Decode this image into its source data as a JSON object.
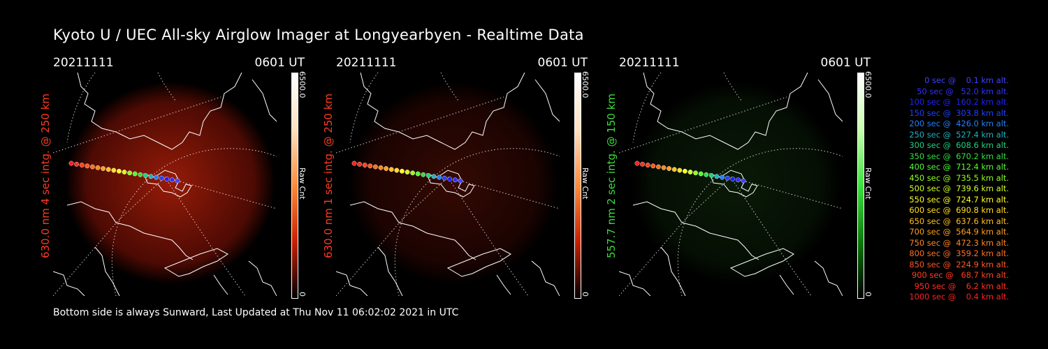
{
  "title": "Kyoto U / UEC All-sky Airglow Imager at Longyearbyen - Realtime Data",
  "panels": [
    {
      "date": "20211111",
      "time": "0601 UT",
      "label": "630.0 nm 4 sec intg. @ 250 km",
      "label_color": "#ff3b1f",
      "cbar_max": "6500.0",
      "cbar_unit": "Raw Cnt",
      "cbar_min": "0",
      "color_scheme": "red",
      "glow": 0.85
    },
    {
      "date": "20211111",
      "time": "0601 UT",
      "label": "630.0 nm 1 sec intg. @ 250 km",
      "label_color": "#ff3b1f",
      "cbar_max": "6500.0",
      "cbar_unit": "Raw Cnt",
      "cbar_min": "0",
      "color_scheme": "red",
      "glow": 0.3
    },
    {
      "date": "20211111",
      "time": "0601 UT",
      "label": "557.7 nm 2 sec intg. @ 150 km",
      "label_color": "#3ddc3d",
      "cbar_max": "6500.0",
      "cbar_unit": "Raw Cnt",
      "cbar_min": "0",
      "color_scheme": "green",
      "glow": 0.35
    }
  ],
  "legend": [
    {
      "text": "0 sec @    0.1 km alt.",
      "color": "#4040ff"
    },
    {
      "text": "50 sec @   52.0 km alt.",
      "color": "#3030ff"
    },
    {
      "text": "100 sec @  160.2 km alt.",
      "color": "#2020ff"
    },
    {
      "text": "150 sec @  303.8 km alt.",
      "color": "#2040ff"
    },
    {
      "text": "200 sec @  426.0 km alt.",
      "color": "#2080ff"
    },
    {
      "text": "250 sec @  527.4 km alt.",
      "color": "#20b0c0"
    },
    {
      "text": "300 sec @  608.6 km alt.",
      "color": "#20d080"
    },
    {
      "text": "350 sec @  670.2 km alt.",
      "color": "#30e040"
    },
    {
      "text": "400 sec @  712.4 km alt.",
      "color": "#50ff30"
    },
    {
      "text": "450 sec @  735.5 km alt.",
      "color": "#90ff20"
    },
    {
      "text": "500 sec @  739.6 km alt.",
      "color": "#d0ff20"
    },
    {
      "text": "550 sec @  724.7 km alt.",
      "color": "#ffff20"
    },
    {
      "text": "600 sec @  690.8 km alt.",
      "color": "#ffe020"
    },
    {
      "text": "650 sec @  637.6 km alt.",
      "color": "#ffc020"
    },
    {
      "text": "700 sec @  564.9 km alt.",
      "color": "#ffa020"
    },
    {
      "text": "750 sec @  472.3 km alt.",
      "color": "#ff8820"
    },
    {
      "text": "800 sec @  359.2 km alt.",
      "color": "#ff7020"
    },
    {
      "text": "850 sec @  224.9 km alt.",
      "color": "#ff5820"
    },
    {
      "text": "900 sec @   68.7 km alt.",
      "color": "#ff4020"
    },
    {
      "text": "950 sec @    6.2 km alt.",
      "color": "#ff3020"
    },
    {
      "text": "1000 sec @    0.4 km alt.",
      "color": "#ff2020"
    }
  ],
  "footer": "Bottom side is always Sunward, Last Updated at Thu Nov 11 06:02:02 2021 in UTC"
}
